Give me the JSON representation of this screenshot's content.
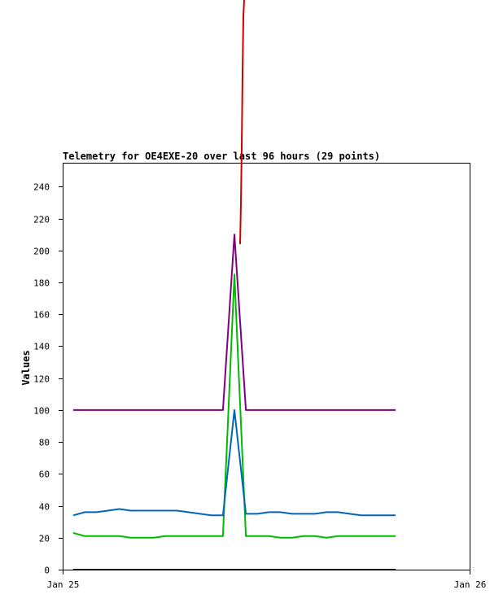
{
  "chart_data": {
    "type": "line",
    "title": "Telemetry for OE4EXE-20 over last 96 hours (29 points)",
    "xlabel": "",
    "ylabel": "Values",
    "x_ticks": [
      "Jan 25",
      "Jan 26"
    ],
    "y_ticks": [
      0,
      20,
      40,
      60,
      80,
      100,
      120,
      140,
      160,
      180,
      200,
      220,
      240
    ],
    "ylim": [
      0,
      255
    ],
    "grid": false,
    "legend": "none",
    "series": [
      {
        "color": "#cc0000",
        "values": [
          null,
          null,
          null,
          null,
          null,
          null,
          null,
          null,
          null,
          null,
          null,
          null,
          null,
          null,
          null,
          null,
          null,
          null,
          null,
          null,
          null,
          null,
          null,
          null,
          null,
          null,
          null,
          null,
          null
        ],
        "note_values_off_scale_above_top": true
      },
      {
        "color": "#800080",
        "values": [
          100,
          100,
          100,
          100,
          100,
          100,
          100,
          100,
          100,
          100,
          100,
          100,
          100,
          100,
          210,
          100,
          100,
          100,
          100,
          100,
          100,
          100,
          100,
          100,
          100,
          100,
          100,
          100,
          100
        ]
      },
      {
        "color": "#00bb00",
        "values": [
          23,
          21,
          21,
          21,
          21,
          20,
          20,
          20,
          21,
          21,
          21,
          21,
          21,
          21,
          185,
          21,
          21,
          21,
          20,
          20,
          21,
          21,
          20,
          21,
          21,
          21,
          21,
          21,
          21
        ]
      },
      {
        "color": "#0066bb",
        "values": [
          34,
          36,
          36,
          37,
          38,
          37,
          37,
          37,
          37,
          37,
          36,
          35,
          34,
          34,
          100,
          35,
          35,
          36,
          36,
          35,
          35,
          35,
          36,
          36,
          35,
          34,
          34,
          34,
          34
        ]
      },
      {
        "color": "#000000",
        "values": [
          0,
          0,
          0,
          0,
          0,
          0,
          0,
          0,
          0,
          0,
          0,
          0,
          0,
          0,
          0,
          0,
          0,
          0,
          0,
          0,
          0,
          0,
          0,
          0,
          0,
          0,
          0,
          0,
          0
        ]
      }
    ]
  }
}
